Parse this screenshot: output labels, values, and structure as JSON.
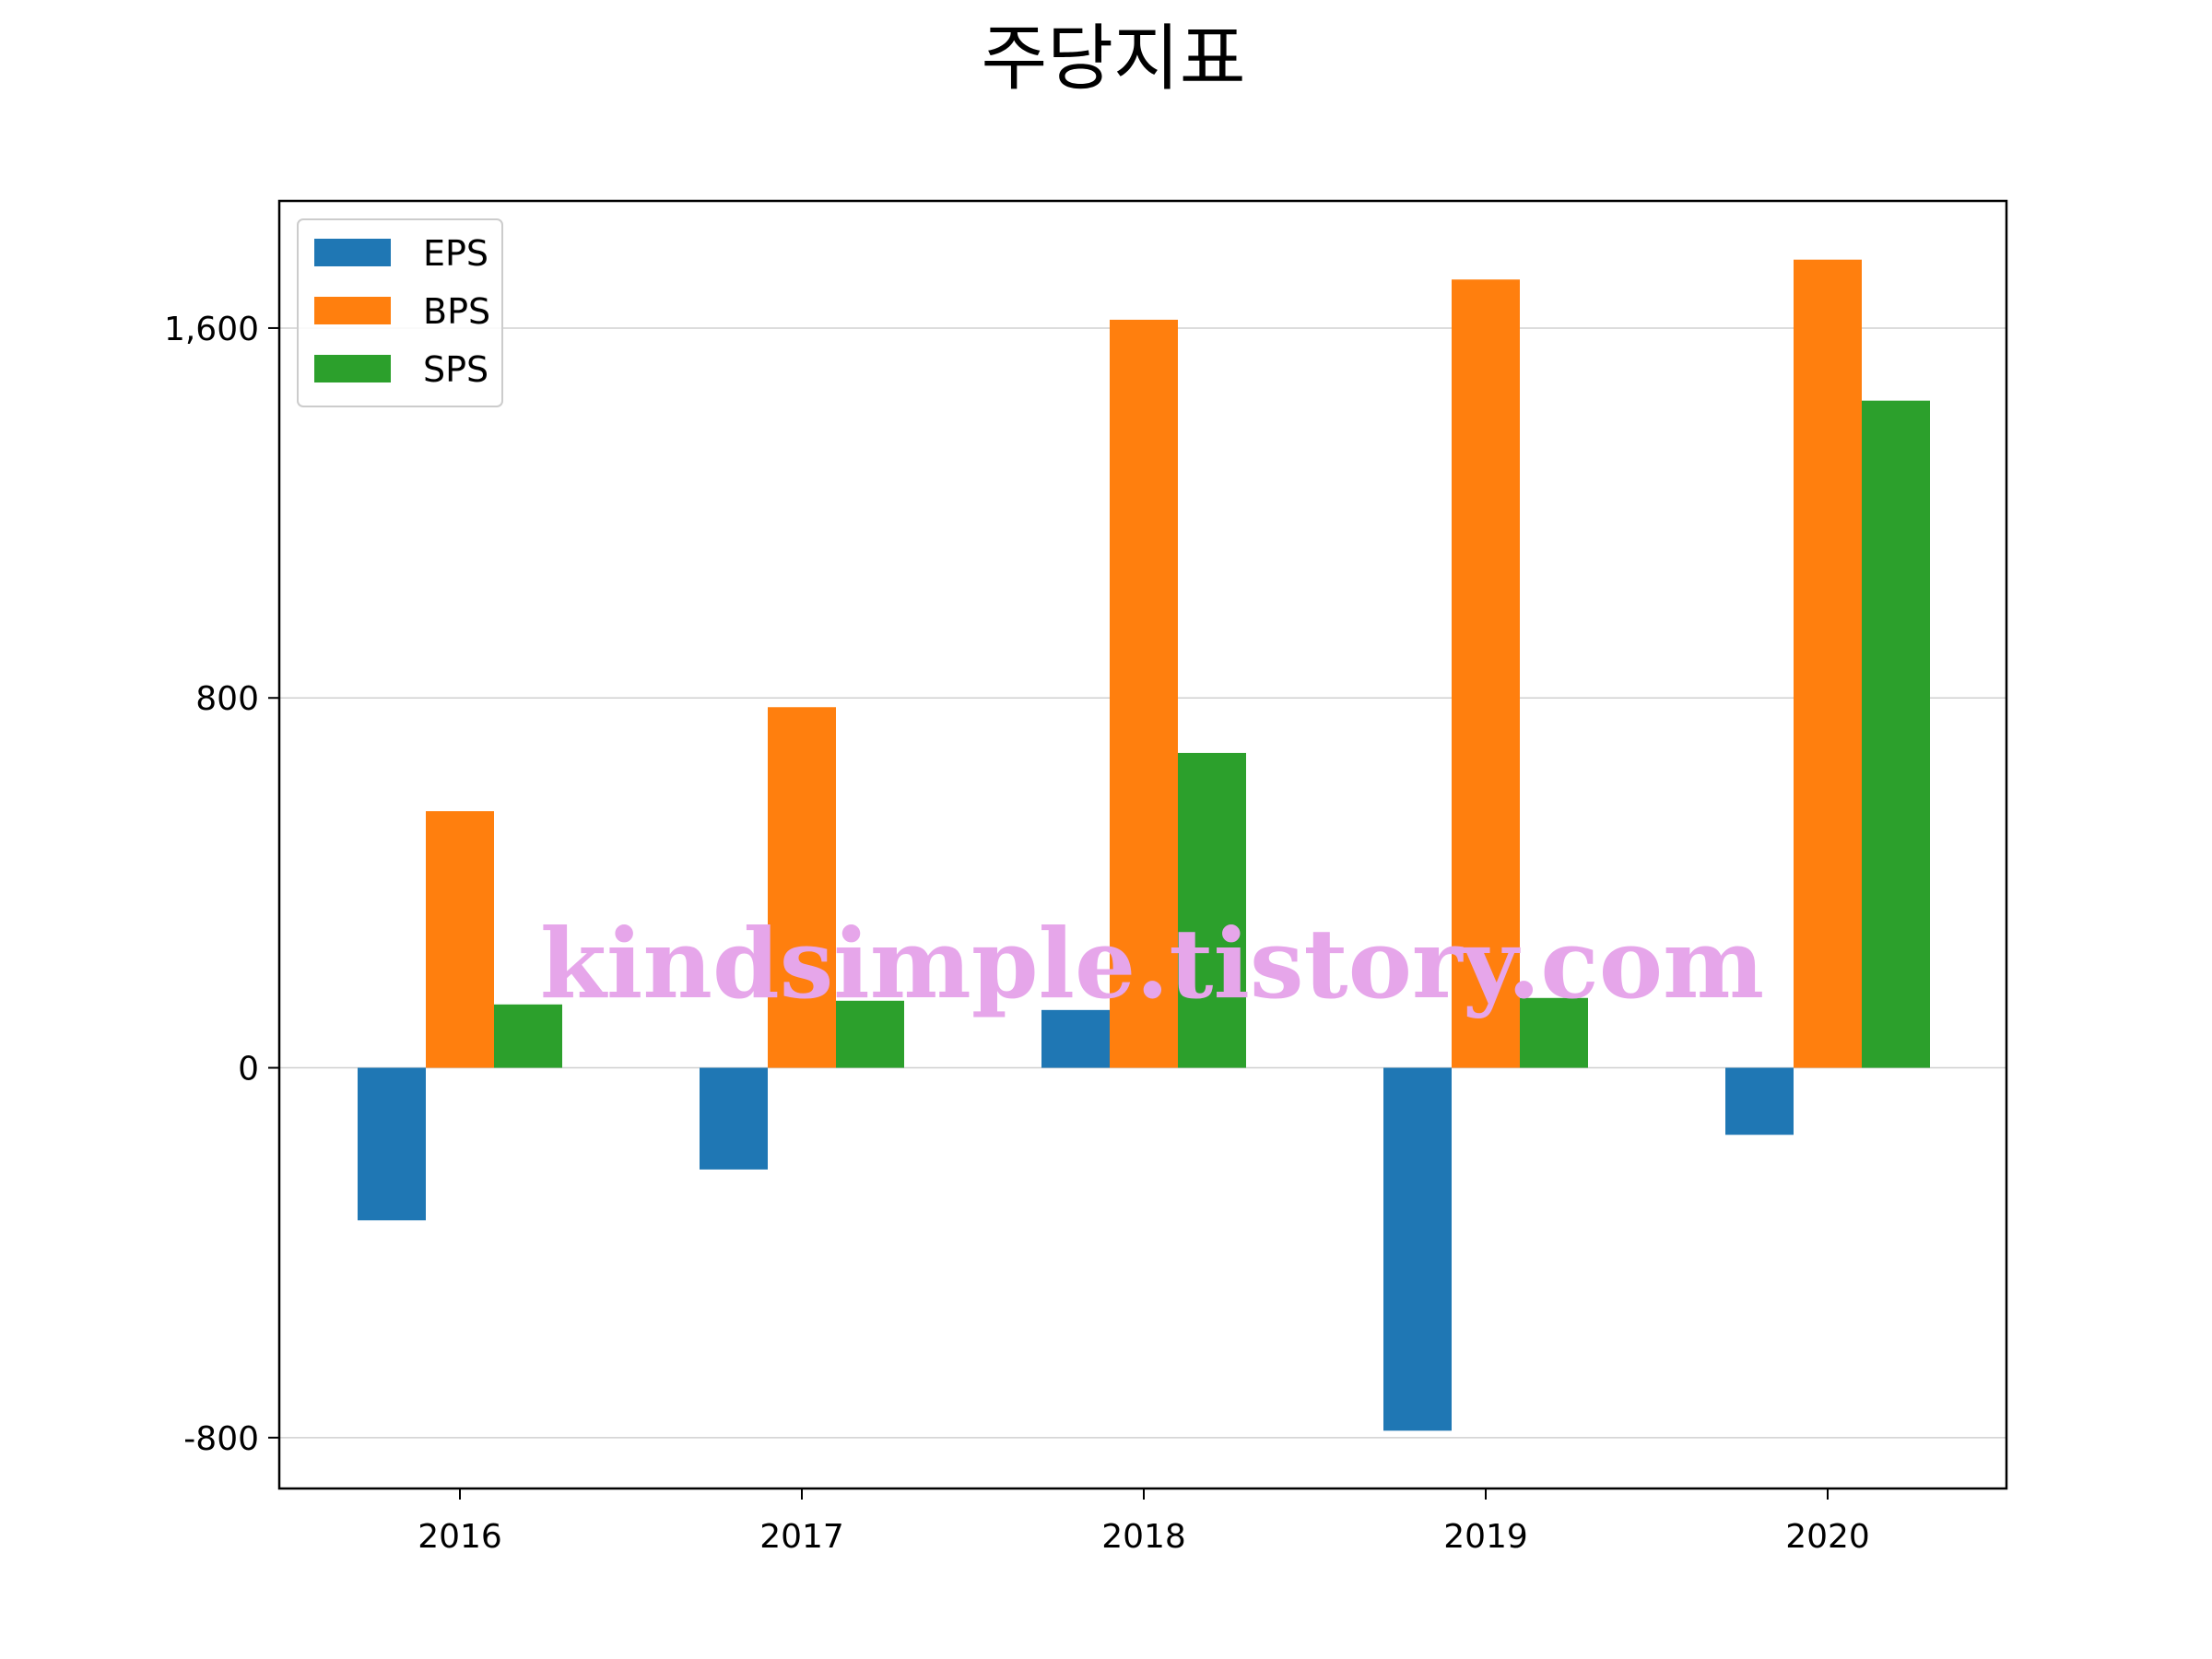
{
  "chart_data": {
    "type": "bar",
    "title": "주당지표",
    "xlabel": "",
    "ylabel": "",
    "categories": [
      "2016",
      "2017",
      "2018",
      "2019",
      "2020"
    ],
    "series": [
      {
        "name": "EPS",
        "color": "#1f77b4",
        "values": [
          -330,
          -220,
          125,
          -785,
          -145
        ]
      },
      {
        "name": "BPS",
        "color": "#ff7f0e",
        "values": [
          555,
          780,
          1618,
          1705,
          1748
        ]
      },
      {
        "name": "SPS",
        "color": "#2ca02c",
        "values": [
          137,
          145,
          681,
          151,
          1443
        ]
      }
    ],
    "ylim": [
      -910,
      1875
    ],
    "yticks": [
      -800,
      0,
      800,
      1600
    ],
    "ytick_labels": [
      "-800",
      "0",
      "800",
      "1,600"
    ],
    "grid": "y",
    "legend_position": "top-left",
    "watermark": "kindsimple.tistory.com"
  }
}
